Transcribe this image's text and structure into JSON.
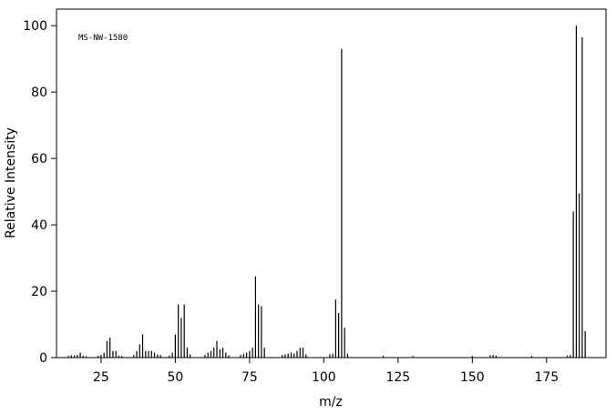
{
  "chart_data": {
    "type": "stem",
    "annotation": "MS-NW-1580",
    "xlabel": "m/z",
    "ylabel": "Relative Intensity",
    "color": "#000000",
    "x": [
      14,
      15,
      16,
      17,
      18,
      19,
      20,
      24,
      25,
      26,
      27,
      28,
      29,
      30,
      31,
      32,
      36,
      37,
      38,
      39,
      40,
      41,
      42,
      43,
      44,
      45,
      48,
      49,
      50,
      51,
      52,
      53,
      54,
      55,
      60,
      61,
      62,
      63,
      64,
      65,
      66,
      67,
      68,
      72,
      73,
      74,
      75,
      76,
      77,
      78,
      79,
      80,
      86,
      87,
      88,
      89,
      90,
      91,
      92,
      93,
      94,
      102,
      103,
      104,
      105,
      106,
      107,
      108,
      120,
      130,
      150,
      156,
      157,
      158,
      170,
      182,
      183,
      184,
      185,
      186,
      187,
      188
    ],
    "values": [
      0.5,
      0.7,
      0.6,
      0.8,
      1.5,
      0.5,
      0.4,
      0.5,
      0.8,
      1.5,
      5,
      6,
      2,
      2,
      0.6,
      0.5,
      0.8,
      2,
      4,
      7,
      2,
      2,
      2,
      1.5,
      1,
      0.8,
      0.6,
      1.5,
      7,
      16,
      12,
      16,
      3,
      1,
      0.8,
      1.5,
      2,
      3,
      5,
      2.5,
      3,
      1.5,
      0.7,
      0.8,
      1.2,
      1.5,
      2,
      3,
      24.5,
      16,
      15.5,
      3,
      0.8,
      1,
      1.2,
      1.5,
      1.2,
      2,
      3,
      3,
      1,
      1,
      1.2,
      17.5,
      13.5,
      93,
      9,
      1.2,
      0.5,
      0.5,
      0.5,
      0.7,
      0.8,
      0.6,
      0.5,
      0.6,
      0.8,
      44,
      100,
      49.5,
      96.5,
      8
    ],
    "xlim": [
      10,
      195
    ],
    "ylim": [
      0,
      105
    ],
    "xticks": [
      25,
      50,
      75,
      100,
      125,
      150,
      175
    ],
    "yticks": [
      0,
      20,
      40,
      60,
      80,
      100
    ]
  }
}
